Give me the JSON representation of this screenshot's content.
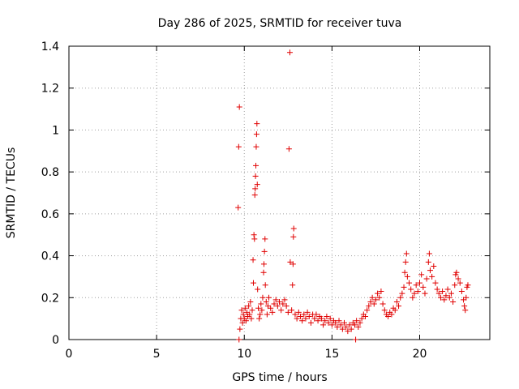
{
  "chart_data": {
    "type": "scatter",
    "title": "Day 286 of 2025, SRMTID for receiver tuva",
    "xlabel": "GPS time / hours",
    "ylabel": "SRMTID / TECUs",
    "xlim": [
      0,
      24
    ],
    "ylim": [
      0,
      1.4
    ],
    "xticks": [
      0,
      5,
      10,
      15,
      20
    ],
    "xtick_labels": [
      "0",
      "5",
      "10",
      "15",
      "20"
    ],
    "yticks": [
      0,
      0.2,
      0.4,
      0.6,
      0.8,
      1.0,
      1.2,
      1.4
    ],
    "ytick_labels": [
      "0",
      "0.2",
      "0.4",
      "0.6",
      "0.8",
      "1",
      "1.2",
      "1.4"
    ],
    "grid": true,
    "marker": "+",
    "color": "#e00000",
    "series": [
      {
        "name": "SRMTID",
        "points": [
          [
            9.65,
            0.63
          ],
          [
            9.68,
            0.92
          ],
          [
            9.72,
            1.11
          ],
          [
            9.75,
            0.05
          ],
          [
            9.8,
            0.1
          ],
          [
            9.85,
            0.14
          ],
          [
            9.9,
            0.08
          ],
          [
            9.95,
            0.12
          ],
          [
            10.0,
            0.1
          ],
          [
            10.05,
            0.15
          ],
          [
            10.1,
            0.09
          ],
          [
            10.15,
            0.13
          ],
          [
            10.2,
            0.11
          ],
          [
            10.25,
            0.16
          ],
          [
            10.3,
            0.12
          ],
          [
            10.35,
            0.18
          ],
          [
            10.4,
            0.1
          ],
          [
            10.45,
            0.14
          ],
          [
            10.5,
            0.38
          ],
          [
            10.52,
            0.27
          ],
          [
            10.55,
            0.5
          ],
          [
            10.58,
            0.48
          ],
          [
            10.6,
            0.69
          ],
          [
            10.62,
            0.72
          ],
          [
            10.64,
            0.78
          ],
          [
            10.66,
            0.83
          ],
          [
            10.68,
            0.92
          ],
          [
            10.7,
            0.98
          ],
          [
            10.72,
            1.03
          ],
          [
            10.74,
            0.74
          ],
          [
            10.76,
            0.24
          ],
          [
            10.8,
            0.15
          ],
          [
            10.85,
            0.1
          ],
          [
            10.9,
            0.12
          ],
          [
            10.95,
            0.17
          ],
          [
            11.0,
            0.14
          ],
          [
            11.05,
            0.2
          ],
          [
            11.1,
            0.32
          ],
          [
            11.12,
            0.36
          ],
          [
            11.15,
            0.42
          ],
          [
            11.18,
            0.48
          ],
          [
            11.2,
            0.26
          ],
          [
            11.25,
            0.18
          ],
          [
            11.3,
            0.12
          ],
          [
            11.35,
            0.16
          ],
          [
            11.4,
            0.2
          ],
          [
            11.5,
            0.15
          ],
          [
            11.6,
            0.13
          ],
          [
            11.7,
            0.17
          ],
          [
            11.8,
            0.19
          ],
          [
            11.9,
            0.16
          ],
          [
            12.0,
            0.18
          ],
          [
            12.1,
            0.14
          ],
          [
            12.2,
            0.17
          ],
          [
            12.3,
            0.19
          ],
          [
            12.4,
            0.16
          ],
          [
            12.5,
            0.13
          ],
          [
            12.55,
            0.91
          ],
          [
            12.6,
            1.37
          ],
          [
            12.62,
            0.37
          ],
          [
            12.7,
            0.14
          ],
          [
            12.75,
            0.26
          ],
          [
            12.78,
            0.36
          ],
          [
            12.8,
            0.49
          ],
          [
            12.82,
            0.53
          ],
          [
            12.9,
            0.12
          ],
          [
            13.0,
            0.1
          ],
          [
            13.1,
            0.13
          ],
          [
            13.2,
            0.11
          ],
          [
            13.3,
            0.09
          ],
          [
            13.4,
            0.12
          ],
          [
            13.5,
            0.1
          ],
          [
            13.6,
            0.13
          ],
          [
            13.7,
            0.11
          ],
          [
            13.8,
            0.08
          ],
          [
            13.9,
            0.12
          ],
          [
            14.0,
            0.1
          ],
          [
            14.1,
            0.12
          ],
          [
            14.2,
            0.09
          ],
          [
            14.3,
            0.11
          ],
          [
            14.4,
            0.1
          ],
          [
            14.5,
            0.07
          ],
          [
            14.6,
            0.09
          ],
          [
            14.7,
            0.11
          ],
          [
            14.8,
            0.08
          ],
          [
            14.9,
            0.1
          ],
          [
            15.0,
            0.07
          ],
          [
            15.1,
            0.09
          ],
          [
            15.2,
            0.08
          ],
          [
            15.3,
            0.06
          ],
          [
            15.4,
            0.09
          ],
          [
            15.5,
            0.07
          ],
          [
            15.6,
            0.05
          ],
          [
            15.7,
            0.08
          ],
          [
            15.8,
            0.06
          ],
          [
            15.9,
            0.04
          ],
          [
            16.0,
            0.07
          ],
          [
            16.1,
            0.05
          ],
          [
            16.2,
            0.08
          ],
          [
            16.3,
            0.07
          ],
          [
            16.35,
            0.0
          ],
          [
            16.4,
            0.09
          ],
          [
            16.5,
            0.06
          ],
          [
            16.6,
            0.08
          ],
          [
            16.7,
            0.1
          ],
          [
            16.8,
            0.12
          ],
          [
            16.9,
            0.11
          ],
          [
            17.0,
            0.14
          ],
          [
            17.1,
            0.16
          ],
          [
            17.2,
            0.18
          ],
          [
            17.3,
            0.2
          ],
          [
            17.4,
            0.17
          ],
          [
            17.5,
            0.19
          ],
          [
            17.6,
            0.22
          ],
          [
            17.7,
            0.2
          ],
          [
            17.8,
            0.23
          ],
          [
            17.9,
            0.17
          ],
          [
            18.0,
            0.14
          ],
          [
            18.1,
            0.12
          ],
          [
            18.2,
            0.11
          ],
          [
            18.3,
            0.13
          ],
          [
            18.4,
            0.12
          ],
          [
            18.5,
            0.15
          ],
          [
            18.6,
            0.14
          ],
          [
            18.7,
            0.18
          ],
          [
            18.8,
            0.16
          ],
          [
            18.9,
            0.2
          ],
          [
            19.0,
            0.22
          ],
          [
            19.1,
            0.25
          ],
          [
            19.15,
            0.32
          ],
          [
            19.2,
            0.37
          ],
          [
            19.25,
            0.41
          ],
          [
            19.3,
            0.3
          ],
          [
            19.4,
            0.27
          ],
          [
            19.5,
            0.24
          ],
          [
            19.6,
            0.2
          ],
          [
            19.7,
            0.22
          ],
          [
            19.8,
            0.26
          ],
          [
            19.9,
            0.23
          ],
          [
            20.0,
            0.27
          ],
          [
            20.1,
            0.31
          ],
          [
            20.2,
            0.25
          ],
          [
            20.3,
            0.22
          ],
          [
            20.4,
            0.29
          ],
          [
            20.5,
            0.37
          ],
          [
            20.55,
            0.41
          ],
          [
            20.6,
            0.33
          ],
          [
            20.7,
            0.3
          ],
          [
            20.8,
            0.35
          ],
          [
            20.9,
            0.27
          ],
          [
            21.0,
            0.24
          ],
          [
            21.1,
            0.22
          ],
          [
            21.2,
            0.2
          ],
          [
            21.3,
            0.23
          ],
          [
            21.4,
            0.19
          ],
          [
            21.5,
            0.21
          ],
          [
            21.6,
            0.24
          ],
          [
            21.7,
            0.2
          ],
          [
            21.8,
            0.22
          ],
          [
            21.9,
            0.18
          ],
          [
            22.0,
            0.26
          ],
          [
            22.05,
            0.31
          ],
          [
            22.1,
            0.32
          ],
          [
            22.2,
            0.29
          ],
          [
            22.3,
            0.27
          ],
          [
            22.4,
            0.23
          ],
          [
            22.5,
            0.19
          ],
          [
            22.55,
            0.16
          ],
          [
            22.6,
            0.14
          ],
          [
            22.65,
            0.2
          ],
          [
            22.7,
            0.25
          ],
          [
            22.75,
            0.26
          ],
          [
            9.7,
            0.0
          ]
        ]
      }
    ]
  }
}
